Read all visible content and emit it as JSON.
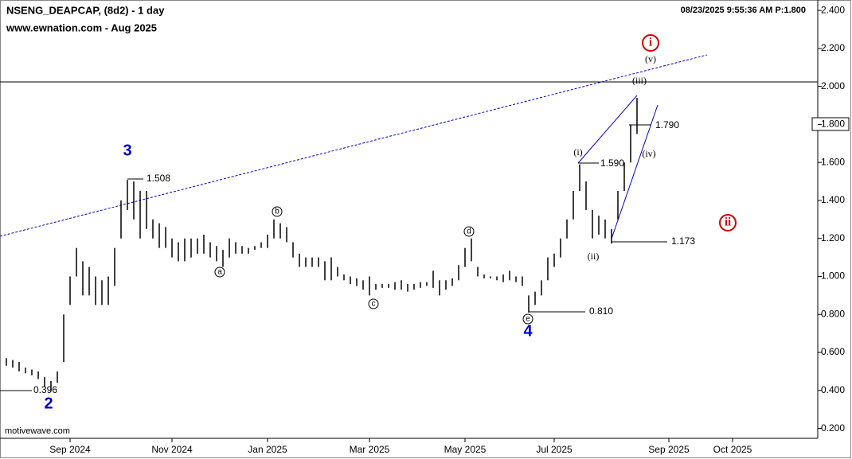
{
  "chart_data": {
    "type": "ohlc",
    "title": "NSENG_DEAPCAP, (8d2) - 1 day",
    "subtitle": "www.ewnation.com  - Aug 2025",
    "timestamp": "08/23/2025 9:55:36 AM  P:1.800",
    "watermark": "motivewave.com",
    "color": "#000000",
    "categories": [
      null,
      null,
      null,
      null,
      null,
      null,
      null,
      null,
      null,
      null,
      "Sep 2024",
      null,
      null,
      null,
      null,
      null,
      null,
      null,
      null,
      null,
      null,
      null,
      null,
      null,
      null,
      null,
      "Nov 2024",
      null,
      null,
      null,
      null,
      null,
      null,
      null,
      null,
      null,
      null,
      null,
      null,
      null,
      null,
      "Jan 2025",
      null,
      null,
      null,
      null,
      null,
      null,
      null,
      null,
      null,
      null,
      null,
      null,
      null,
      null,
      null,
      "Mar 2025",
      null,
      null,
      null,
      null,
      null,
      null,
      null,
      null,
      null,
      null,
      null,
      null,
      null,
      null,
      "May 2025",
      null,
      null,
      null,
      null,
      null,
      null,
      null,
      null,
      null,
      null,
      null,
      null,
      null,
      "Jul 2025",
      null,
      null,
      null,
      null,
      null,
      null,
      null,
      null,
      null,
      null,
      null,
      null,
      null,
      null,
      null,
      null,
      null,
      "Sep 2025",
      null,
      null,
      null,
      null,
      null,
      null,
      null,
      null,
      null,
      "Oct 2025"
    ],
    "high": [
      0.57,
      0.56,
      0.55,
      0.52,
      0.51,
      0.5,
      0.47,
      0.45,
      0.5,
      0.8,
      1.0,
      1.15,
      1.08,
      1.05,
      1.0,
      0.98,
      1.0,
      1.15,
      1.4,
      1.508,
      1.5,
      1.45,
      1.45,
      1.3,
      1.28,
      1.26,
      1.2,
      1.18,
      1.2,
      1.2,
      1.2,
      1.22,
      1.18,
      1.16,
      1.14,
      1.2,
      1.18,
      1.16,
      1.15,
      1.16,
      1.18,
      1.22,
      1.3,
      1.28,
      1.26,
      1.18,
      1.12,
      1.1,
      1.1,
      1.1,
      1.08,
      1.1,
      1.05,
      1.01,
      1.0,
      0.99,
      0.98,
      1.0,
      0.96,
      0.96,
      0.96,
      0.97,
      0.98,
      0.96,
      0.96,
      0.97,
      0.97,
      1.03,
      0.98,
      0.98,
      0.99,
      1.06,
      1.15,
      1.2,
      1.05,
      1.01,
      1.0,
      1.0,
      1.01,
      1.03,
      1.0,
      1.0,
      0.9,
      0.92,
      0.98,
      1.1,
      1.12,
      1.2,
      1.3,
      1.45,
      1.59,
      1.5,
      1.35,
      1.32,
      1.3,
      1.25,
      1.45,
      1.6,
      1.8,
      1.94,
      null,
      null,
      null,
      null,
      null,
      null,
      null,
      null,
      null,
      null,
      null,
      null,
      null,
      null,
      null
    ],
    "low": [
      0.53,
      0.52,
      0.5,
      0.49,
      0.48,
      0.46,
      0.42,
      0.396,
      0.44,
      0.55,
      0.85,
      1.0,
      0.9,
      0.9,
      0.85,
      0.85,
      0.85,
      0.95,
      1.2,
      1.35,
      1.3,
      1.2,
      1.25,
      1.2,
      1.15,
      1.15,
      1.1,
      1.08,
      1.08,
      1.1,
      1.12,
      1.12,
      1.1,
      1.08,
      1.05,
      1.1,
      1.12,
      1.12,
      1.12,
      1.14,
      1.15,
      1.15,
      1.2,
      1.2,
      1.18,
      1.1,
      1.05,
      1.05,
      1.05,
      1.05,
      0.98,
      0.98,
      1.0,
      0.98,
      0.96,
      0.95,
      0.93,
      0.9,
      0.93,
      0.94,
      0.94,
      0.93,
      0.93,
      0.92,
      0.93,
      0.94,
      0.95,
      0.94,
      0.9,
      0.93,
      0.95,
      0.98,
      1.05,
      1.08,
      1.0,
      0.99,
      0.99,
      0.98,
      0.97,
      0.98,
      0.97,
      0.95,
      0.81,
      0.85,
      0.9,
      0.98,
      1.05,
      1.1,
      1.2,
      1.3,
      1.45,
      1.35,
      1.2,
      1.22,
      1.2,
      1.173,
      1.3,
      1.45,
      1.6,
      1.75,
      null,
      null,
      null,
      null,
      null,
      null,
      null,
      null,
      null,
      null,
      null,
      null,
      null,
      null,
      null
    ],
    "ylim": [
      0.148,
      2.455
    ],
    "yticks": [
      {
        "value": 0.2,
        "label": "0.200"
      },
      {
        "value": 0.4,
        "label": "0.400"
      },
      {
        "value": 0.6,
        "label": "0.600"
      },
      {
        "value": 0.8,
        "label": "0.800"
      },
      {
        "value": 1.0,
        "label": "1.000"
      },
      {
        "value": 1.2,
        "label": "1.200"
      },
      {
        "value": 1.4,
        "label": "1.400"
      },
      {
        "value": 1.6,
        "label": "1.600"
      },
      {
        "value": 1.8,
        "label": "1.800"
      },
      {
        "value": 2.0,
        "label": "2.000"
      },
      {
        "value": 2.2,
        "label": "2.200"
      },
      {
        "value": 2.4,
        "label": "2.400"
      }
    ],
    "annotations": [
      "3",
      "2",
      "4",
      "i",
      "ii",
      "(i)",
      "(ii)",
      "(iii)",
      "(iv)",
      "(v)",
      "a",
      "b",
      "c",
      "d",
      "e",
      "1.508",
      "0.396",
      "0.810",
      "1.173",
      "1.590",
      "1.790"
    ]
  }
}
